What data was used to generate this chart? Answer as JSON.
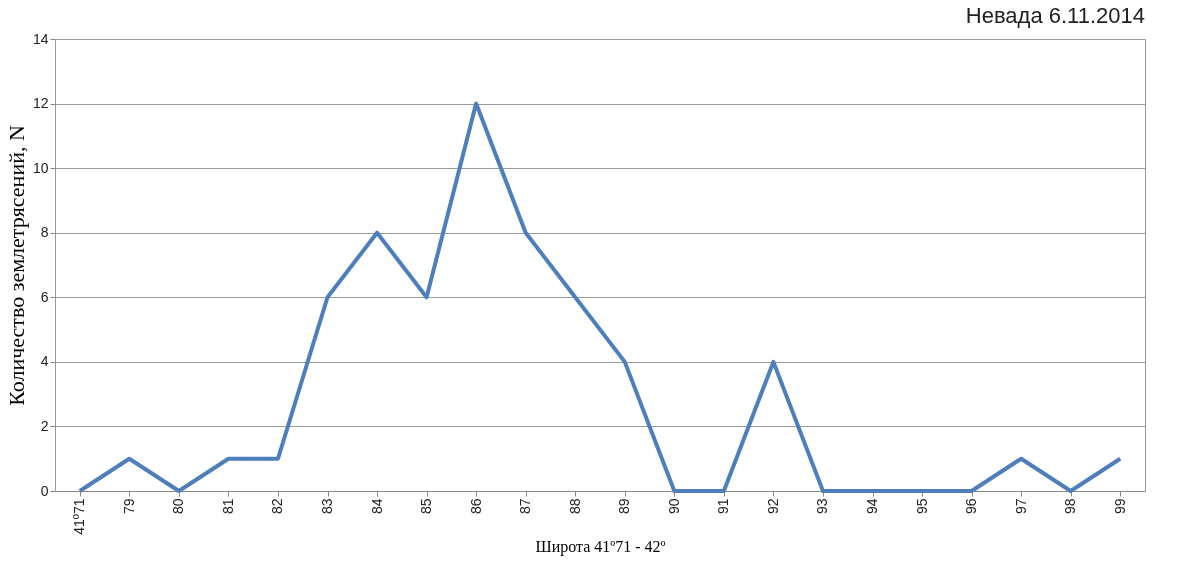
{
  "chart_data": {
    "type": "line",
    "title": "Невада 6.11.2014",
    "xlabel": "Широта 41º71 - 42º",
    "ylabel": "Количество землетрясений, N",
    "categories": [
      "41º71",
      "79",
      "80",
      "81",
      "82",
      "83",
      "84",
      "85",
      "86",
      "87",
      "88",
      "89",
      "90",
      "91",
      "92",
      "93",
      "94",
      "95",
      "96",
      "97",
      "98",
      "99"
    ],
    "series": [
      {
        "color": "#4f7fbb",
        "values": [
          0,
          1,
          0,
          1,
          1,
          6,
          8,
          6,
          12,
          8,
          6,
          4,
          0,
          0,
          4,
          0,
          0,
          0,
          0,
          1,
          0,
          1
        ]
      }
    ],
    "ylim": [
      0,
      14
    ],
    "yticks": [
      0,
      2,
      4,
      6,
      8,
      10,
      12,
      14
    ],
    "grid": "y",
    "marker": "none",
    "line_style": "solid"
  }
}
